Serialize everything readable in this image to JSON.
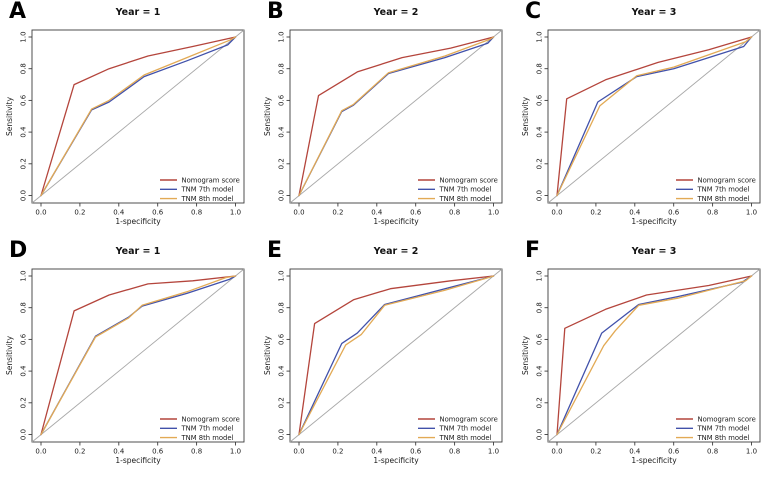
{
  "figure": {
    "background": "#ffffff",
    "layout": "2 rows x 3 columns of ROC curve panels",
    "series_colors": {
      "nomogram_score": "#b4453c",
      "tnm_7th_model": "#4151aa",
      "tnm_8th_model": "#e2aa55",
      "reference_diagonal": "#a8a8a8"
    },
    "legend_labels": [
      "Nomogram score",
      "TNM 7th model",
      "TNM 8th model"
    ],
    "legend_position": "bottomright"
  },
  "chart_data": [
    {
      "type": "line",
      "panel_letter": "A",
      "title": "Year = 1",
      "xlabel": "1-specificity",
      "ylabel": "Sensitivity",
      "xlim": [
        0,
        1
      ],
      "ylim": [
        0,
        1
      ],
      "xticks": [
        "0.0",
        "0.2",
        "0.4",
        "0.6",
        "0.8",
        "1.0"
      ],
      "yticks": [
        "0.0",
        "0.2",
        "0.4",
        "0.6",
        "0.8",
        "1.0"
      ],
      "grid": false,
      "diagonal_reference": true,
      "legend_position": "bottomright",
      "series": [
        {
          "name": "Nomogram score",
          "color": "#b4453c",
          "x": [
            0,
            0.17,
            0.35,
            0.55,
            0.78,
            1.0
          ],
          "y": [
            0,
            0.7,
            0.8,
            0.88,
            0.94,
            1.0
          ]
        },
        {
          "name": "TNM 7th model",
          "color": "#4151aa",
          "x": [
            0,
            0.26,
            0.35,
            0.53,
            0.75,
            0.96,
            1.0
          ],
          "y": [
            0,
            0.54,
            0.59,
            0.75,
            0.85,
            0.95,
            1.0
          ]
        },
        {
          "name": "TNM 8th model",
          "color": "#e2aa55",
          "x": [
            0,
            0.26,
            0.35,
            0.53,
            0.75,
            0.97,
            1.0
          ],
          "y": [
            0,
            0.545,
            0.6,
            0.76,
            0.87,
            0.98,
            1.0
          ]
        }
      ]
    },
    {
      "type": "line",
      "panel_letter": "B",
      "title": "Year = 2",
      "xlabel": "1-specificity",
      "ylabel": "Sensitivity",
      "xlim": [
        0,
        1
      ],
      "ylim": [
        0,
        1
      ],
      "xticks": [
        "0.0",
        "0.2",
        "0.4",
        "0.6",
        "0.8",
        "1.0"
      ],
      "yticks": [
        "0.0",
        "0.2",
        "0.4",
        "0.6",
        "0.8",
        "1.0"
      ],
      "grid": false,
      "diagonal_reference": true,
      "legend_position": "bottomright",
      "series": [
        {
          "name": "Nomogram score",
          "color": "#b4453c",
          "x": [
            0,
            0.1,
            0.3,
            0.53,
            0.78,
            1.0
          ],
          "y": [
            0,
            0.63,
            0.78,
            0.87,
            0.93,
            1.0
          ]
        },
        {
          "name": "TNM 7th model",
          "color": "#4151aa",
          "x": [
            0,
            0.22,
            0.28,
            0.46,
            0.75,
            0.97,
            1.0
          ],
          "y": [
            0,
            0.53,
            0.57,
            0.77,
            0.87,
            0.96,
            1.0
          ]
        },
        {
          "name": "TNM 8th model",
          "color": "#e2aa55",
          "x": [
            0,
            0.22,
            0.28,
            0.46,
            0.75,
            0.98,
            1.0
          ],
          "y": [
            0,
            0.535,
            0.575,
            0.775,
            0.88,
            0.985,
            1.0
          ]
        }
      ]
    },
    {
      "type": "line",
      "panel_letter": "C",
      "title": "Year = 3",
      "xlabel": "1-specificity",
      "ylabel": "Sensitivity",
      "xlim": [
        0,
        1
      ],
      "ylim": [
        0,
        1
      ],
      "xticks": [
        "0.0",
        "0.2",
        "0.4",
        "0.6",
        "0.8",
        "1.0"
      ],
      "yticks": [
        "0.0",
        "0.2",
        "0.4",
        "0.6",
        "0.8",
        "1.0"
      ],
      "grid": false,
      "diagonal_reference": true,
      "legend_position": "bottomright",
      "series": [
        {
          "name": "Nomogram score",
          "color": "#b4453c",
          "x": [
            0,
            0.05,
            0.25,
            0.52,
            0.78,
            1.0
          ],
          "y": [
            0,
            0.61,
            0.73,
            0.84,
            0.92,
            1.0
          ]
        },
        {
          "name": "TNM 7th model",
          "color": "#4151aa",
          "x": [
            0,
            0.21,
            0.41,
            0.6,
            0.96,
            1.0
          ],
          "y": [
            0,
            0.59,
            0.75,
            0.8,
            0.94,
            1.0
          ]
        },
        {
          "name": "TNM 8th model",
          "color": "#e2aa55",
          "x": [
            0,
            0.22,
            0.41,
            0.6,
            0.97,
            1.0
          ],
          "y": [
            0,
            0.565,
            0.755,
            0.81,
            0.97,
            1.0
          ]
        }
      ]
    },
    {
      "type": "line",
      "panel_letter": "D",
      "title": "Year = 1",
      "xlabel": "1-specificity",
      "ylabel": "Sensitivity",
      "xlim": [
        0,
        1
      ],
      "ylim": [
        0,
        1
      ],
      "xticks": [
        "0.0",
        "0.2",
        "0.4",
        "0.6",
        "0.8",
        "1.0"
      ],
      "yticks": [
        "0.0",
        "0.2",
        "0.4",
        "0.6",
        "0.8",
        "1.0"
      ],
      "grid": false,
      "diagonal_reference": true,
      "legend_position": "bottomright",
      "series": [
        {
          "name": "Nomogram score",
          "color": "#b4453c",
          "x": [
            0,
            0.17,
            0.35,
            0.55,
            0.78,
            1.0
          ],
          "y": [
            0,
            0.78,
            0.88,
            0.95,
            0.97,
            1.0
          ]
        },
        {
          "name": "TNM 7th model",
          "color": "#4151aa",
          "x": [
            0,
            0.28,
            0.45,
            0.52,
            0.75,
            0.97,
            1.0
          ],
          "y": [
            0,
            0.62,
            0.74,
            0.81,
            0.89,
            0.98,
            1.0
          ]
        },
        {
          "name": "TNM 8th model",
          "color": "#e2aa55",
          "x": [
            0,
            0.28,
            0.45,
            0.52,
            0.75,
            0.95,
            1.0
          ],
          "y": [
            0,
            0.615,
            0.735,
            0.815,
            0.9,
            0.99,
            1.0
          ]
        }
      ]
    },
    {
      "type": "line",
      "panel_letter": "E",
      "title": "Year = 2",
      "xlabel": "1-specificity",
      "ylabel": "Sensitivity",
      "xlim": [
        0,
        1
      ],
      "ylim": [
        0,
        1
      ],
      "xticks": [
        "0.0",
        "0.2",
        "0.4",
        "0.6",
        "0.8",
        "1.0"
      ],
      "yticks": [
        "0.0",
        "0.2",
        "0.4",
        "0.6",
        "0.8",
        "1.0"
      ],
      "grid": false,
      "diagonal_reference": true,
      "legend_position": "bottomright",
      "series": [
        {
          "name": "Nomogram score",
          "color": "#b4453c",
          "x": [
            0,
            0.08,
            0.28,
            0.47,
            0.78,
            1.0
          ],
          "y": [
            0,
            0.7,
            0.85,
            0.92,
            0.97,
            1.0
          ]
        },
        {
          "name": "TNM 7th model",
          "color": "#4151aa",
          "x": [
            0,
            0.22,
            0.3,
            0.44,
            0.75,
            0.97,
            1.0
          ],
          "y": [
            0,
            0.575,
            0.64,
            0.82,
            0.92,
            0.99,
            1.0
          ]
        },
        {
          "name": "TNM 8th model",
          "color": "#e2aa55",
          "x": [
            0,
            0.24,
            0.32,
            0.44,
            0.75,
            0.96,
            1.0
          ],
          "y": [
            0,
            0.565,
            0.63,
            0.815,
            0.91,
            0.985,
            1.0
          ]
        }
      ]
    },
    {
      "type": "line",
      "panel_letter": "F",
      "title": "Year = 3",
      "xlabel": "1-specificity",
      "ylabel": "Sensitivity",
      "xlim": [
        0,
        1
      ],
      "ylim": [
        0,
        1
      ],
      "xticks": [
        "0.0",
        "0.2",
        "0.4",
        "0.6",
        "0.8",
        "1.0"
      ],
      "yticks": [
        "0.0",
        "0.2",
        "0.4",
        "0.6",
        "0.8",
        "1.0"
      ],
      "grid": false,
      "diagonal_reference": true,
      "legend_position": "bottomright",
      "series": [
        {
          "name": "Nomogram score",
          "color": "#b4453c",
          "x": [
            0,
            0.04,
            0.25,
            0.46,
            0.78,
            1.0
          ],
          "y": [
            0,
            0.67,
            0.79,
            0.88,
            0.94,
            1.0
          ]
        },
        {
          "name": "TNM 7th model",
          "color": "#4151aa",
          "x": [
            0,
            0.23,
            0.42,
            0.62,
            0.95,
            1.0
          ],
          "y": [
            0,
            0.64,
            0.82,
            0.87,
            0.96,
            1.0
          ]
        },
        {
          "name": "TNM 8th model",
          "color": "#e2aa55",
          "x": [
            0,
            0.24,
            0.3,
            0.42,
            0.62,
            0.97,
            1.0
          ],
          "y": [
            0,
            0.56,
            0.655,
            0.815,
            0.86,
            0.97,
            1.0
          ]
        }
      ]
    }
  ]
}
